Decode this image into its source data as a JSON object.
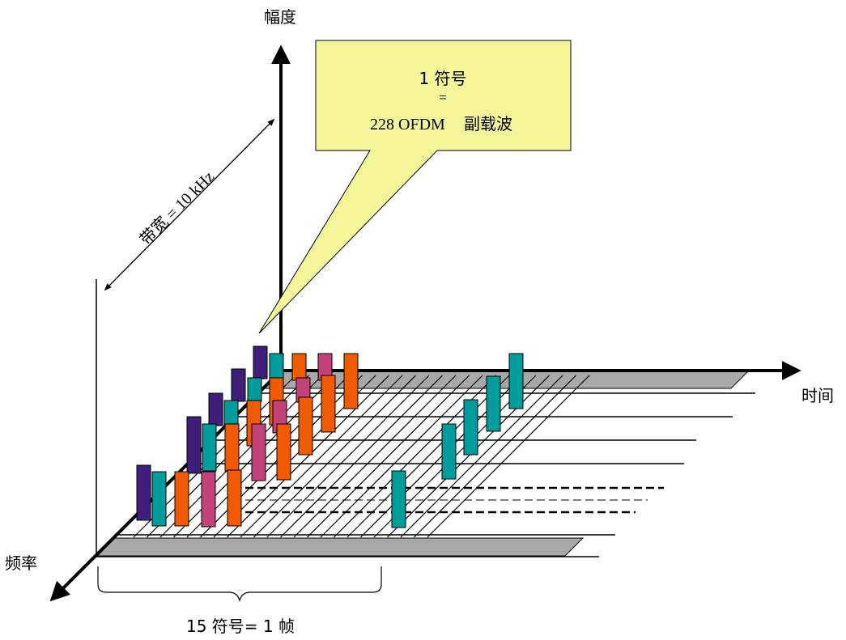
{
  "axes": {
    "amplitude": "幅度",
    "time": "时间",
    "frequency": "频率"
  },
  "bandwidth_label": "带宽 = 10 kHz",
  "callout": {
    "line1": "1 符号",
    "line2": "=",
    "line3_num": "228 OFDM",
    "line3_text": "副载波"
  },
  "frame_label": "15 符号= 1  帧",
  "colors": {
    "purple": "#3d1f7a",
    "teal": "#009c9c",
    "orange": "#f05a00",
    "magenta": "#c4427a",
    "callout_fill": "#f5f59a",
    "band_gray": "#a8a8a8"
  }
}
